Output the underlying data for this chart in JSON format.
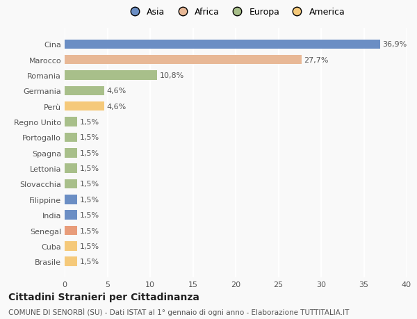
{
  "categories": [
    "Brasile",
    "Cuba",
    "Senegal",
    "India",
    "Filippine",
    "Slovacchia",
    "Lettonia",
    "Spagna",
    "Portogallo",
    "Regno Unito",
    "Perù",
    "Germania",
    "Romania",
    "Marocco",
    "Cina"
  ],
  "values": [
    1.5,
    1.5,
    1.5,
    1.5,
    1.5,
    1.5,
    1.5,
    1.5,
    1.5,
    1.5,
    4.6,
    4.6,
    10.8,
    27.7,
    36.9
  ],
  "colors": [
    "#f5c97a",
    "#f5c97a",
    "#e89c7a",
    "#6b8ec4",
    "#6b8ec4",
    "#a8bf8a",
    "#a8bf8a",
    "#a8bf8a",
    "#a8bf8a",
    "#a8bf8a",
    "#f5c97a",
    "#a8bf8a",
    "#a8bf8a",
    "#e8b896",
    "#6b8ec4"
  ],
  "labels": [
    "1,5%",
    "1,5%",
    "1,5%",
    "1,5%",
    "1,5%",
    "1,5%",
    "1,5%",
    "1,5%",
    "1,5%",
    "1,5%",
    "4,6%",
    "4,6%",
    "10,8%",
    "27,7%",
    "36,9%"
  ],
  "legend": [
    {
      "label": "Asia",
      "color": "#6b8ec4"
    },
    {
      "label": "Africa",
      "color": "#e8b896"
    },
    {
      "label": "Europa",
      "color": "#a8bf8a"
    },
    {
      "label": "America",
      "color": "#f5c97a"
    }
  ],
  "title": "Cittadini Stranieri per Cittadinanza",
  "subtitle": "COMUNE DI SENORBÌ (SU) - Dati ISTAT al 1° gennaio di ogni anno - Elaborazione TUTTITALIA.IT",
  "xlim": [
    0,
    40
  ],
  "xticks": [
    0,
    5,
    10,
    15,
    20,
    25,
    30,
    35,
    40
  ],
  "background_color": "#f9f9f9",
  "grid_color": "#ffffff",
  "bar_height": 0.6,
  "title_fontsize": 10,
  "subtitle_fontsize": 7.5,
  "label_fontsize": 8,
  "tick_fontsize": 8,
  "legend_fontsize": 9
}
